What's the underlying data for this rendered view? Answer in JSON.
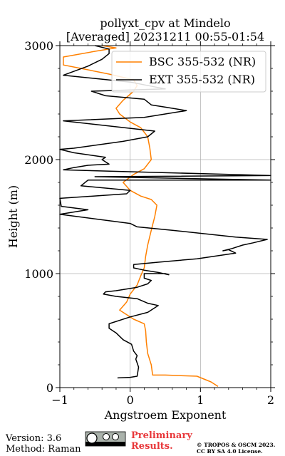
{
  "chart_data": {
    "type": "line",
    "title": "pollyxt_cpv at Mindelo",
    "subtitle": "[Averaged] 20231211 00:55-01:54",
    "xlabel": "Angstroem Exponent",
    "ylabel": "Height (m)",
    "xlim": [
      -1,
      2
    ],
    "ylim": [
      0,
      3000
    ],
    "xticks": [
      -1,
      0,
      1,
      2
    ],
    "yticks": [
      0,
      1000,
      2000,
      3000
    ],
    "xtick_labels": [
      "−1",
      "0",
      "1",
      "2"
    ],
    "ytick_labels": [
      "0",
      "1000",
      "2000",
      "3000"
    ],
    "grid": true,
    "legend_position": "top-right",
    "series": [
      {
        "name": "BSC 355-532 (NR)",
        "color": "#ff8000",
        "points": [
          [
            1.25,
            10
          ],
          [
            1.15,
            50
          ],
          [
            0.95,
            100
          ],
          [
            0.5,
            110
          ],
          [
            0.32,
            110
          ],
          [
            0.3,
            200
          ],
          [
            0.25,
            300
          ],
          [
            0.23,
            400
          ],
          [
            0.22,
            500
          ],
          [
            0.2,
            560
          ],
          [
            0.05,
            600
          ],
          [
            -0.15,
            680
          ],
          [
            -0.05,
            750
          ],
          [
            0.0,
            820
          ],
          [
            0.1,
            900
          ],
          [
            0.15,
            980
          ],
          [
            0.2,
            1050
          ],
          [
            0.22,
            1150
          ],
          [
            0.25,
            1250
          ],
          [
            0.3,
            1380
          ],
          [
            0.35,
            1500
          ],
          [
            0.38,
            1600
          ],
          [
            0.3,
            1650
          ],
          [
            0.15,
            1680
          ],
          [
            0.0,
            1730
          ],
          [
            -0.1,
            1800
          ],
          [
            0.05,
            1870
          ],
          [
            0.2,
            1920
          ],
          [
            0.3,
            2000
          ],
          [
            0.28,
            2100
          ],
          [
            0.25,
            2200
          ],
          [
            0.15,
            2280
          ],
          [
            0.0,
            2330
          ],
          [
            -0.15,
            2400
          ],
          [
            -0.2,
            2450
          ],
          [
            -0.1,
            2520
          ],
          [
            0.05,
            2600
          ],
          [
            0.1,
            2650
          ],
          [
            0.05,
            2700
          ],
          [
            -0.3,
            2750
          ],
          [
            -0.7,
            2800
          ],
          [
            -0.95,
            2830
          ],
          [
            -0.95,
            2900
          ],
          [
            -0.5,
            2950
          ],
          [
            -0.2,
            2980
          ],
          [
            -0.4,
            3000
          ]
        ]
      },
      {
        "name": "EXT 355-532 (NR)",
        "color": "#000000",
        "points": [
          [
            -0.18,
            85
          ],
          [
            0.0,
            90
          ],
          [
            0.1,
            100
          ],
          [
            0.12,
            180
          ],
          [
            0.08,
            250
          ],
          [
            0.1,
            280
          ],
          [
            0.05,
            320
          ],
          [
            0.02,
            380
          ],
          [
            -0.1,
            420
          ],
          [
            -0.2,
            480
          ],
          [
            -0.3,
            520
          ],
          [
            -0.3,
            560
          ],
          [
            0.0,
            620
          ],
          [
            0.25,
            660
          ],
          [
            0.35,
            700
          ],
          [
            0.4,
            720
          ],
          [
            0.25,
            740
          ],
          [
            0.1,
            780
          ],
          [
            -0.2,
            800
          ],
          [
            -0.38,
            820
          ],
          [
            -0.35,
            840
          ],
          [
            -0.2,
            850
          ],
          [
            0.1,
            880
          ],
          [
            0.25,
            910
          ],
          [
            0.3,
            940
          ],
          [
            0.2,
            960
          ],
          [
            0.2,
            1000
          ],
          [
            0.5,
            1000
          ],
          [
            0.55,
            990
          ],
          [
            0.4,
            1010
          ],
          [
            0.2,
            1030
          ],
          [
            0.05,
            1050
          ],
          [
            0.05,
            1080
          ],
          [
            0.4,
            1100
          ],
          [
            0.95,
            1130
          ],
          [
            1.5,
            1180
          ],
          [
            1.4,
            1210
          ],
          [
            1.32,
            1200
          ],
          [
            1.45,
            1220
          ],
          [
            1.6,
            1250
          ],
          [
            1.75,
            1270
          ],
          [
            1.95,
            1300
          ],
          [
            1.5,
            1320
          ],
          [
            0.6,
            1380
          ],
          [
            0.1,
            1410
          ],
          [
            0.0,
            1440
          ],
          [
            -1.0,
            1520
          ],
          [
            -0.6,
            1560
          ],
          [
            -0.98,
            1590
          ],
          [
            -1.0,
            1660
          ],
          [
            -0.05,
            1700
          ],
          [
            0.0,
            1730
          ],
          [
            -0.7,
            1770
          ],
          [
            -0.6,
            1820
          ],
          [
            2.0,
            1820
          ],
          [
            -0.5,
            1850
          ],
          [
            2.0,
            1860
          ],
          [
            -0.95,
            1910
          ],
          [
            -0.8,
            1930
          ],
          [
            -0.6,
            1950
          ],
          [
            -0.3,
            1960
          ],
          [
            -0.4,
            2000
          ],
          [
            -0.35,
            2020
          ],
          [
            -0.8,
            2060
          ],
          [
            -1.0,
            2090
          ],
          [
            -0.8,
            2100
          ],
          [
            -0.1,
            2160
          ],
          [
            0.25,
            2200
          ],
          [
            0.35,
            2250
          ],
          [
            -0.95,
            2340
          ],
          [
            0.2,
            2370
          ],
          [
            0.8,
            2430
          ],
          [
            0.5,
            2460
          ],
          [
            0.3,
            2480
          ],
          [
            0.2,
            2530
          ],
          [
            -0.35,
            2560
          ],
          [
            -0.55,
            2600
          ],
          [
            0.5,
            2620
          ],
          [
            0.0,
            2680
          ],
          [
            -0.95,
            2740
          ],
          [
            -0.6,
            2820
          ],
          [
            -0.4,
            2880
          ],
          [
            -0.3,
            2930
          ],
          [
            -0.3,
            2970
          ],
          [
            -0.5,
            3000
          ]
        ]
      }
    ]
  },
  "footer": {
    "version": "Version: 3.6",
    "method": "Method: Raman",
    "preliminary_line1": "Preliminary",
    "preliminary_line2": "Results.",
    "copyright_line1": "© TROPOS & OSCM 2023.",
    "copyright_line2": "CC BY SA 4.0 License.",
    "badge_color": "#aab2ab",
    "preliminary_color": "#e8373a"
  }
}
